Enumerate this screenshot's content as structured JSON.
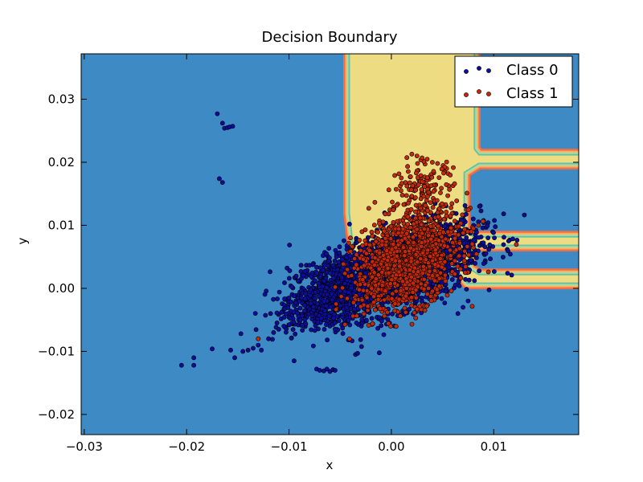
{
  "chart_data": {
    "type": "scatter",
    "title": "Decision Boundary",
    "xlabel": "x",
    "ylabel": "y",
    "xlim": [
      -0.0303,
      0.0183
    ],
    "ylim": [
      -0.0232,
      0.0372
    ],
    "x_ticks": [
      -0.03,
      -0.02,
      -0.01,
      0.0,
      0.01
    ],
    "x_tick_labels": [
      "−0.03",
      "−0.02",
      "−0.01",
      "0.00",
      "0.01"
    ],
    "y_ticks": [
      -0.02,
      -0.01,
      0.0,
      0.01,
      0.02,
      0.03
    ],
    "y_tick_labels": [
      "−0.02",
      "−0.01",
      "0.00",
      "0.01",
      "0.02",
      "0.03"
    ],
    "legend": {
      "placement": "top-right",
      "entries": [
        "Class 0",
        "Class 1"
      ]
    },
    "colors": {
      "background_region": "#3d8ac4",
      "class1_region": "#eedc82",
      "class0_point": "#0d0d9c",
      "class1_point": "#c42a0a",
      "boundary_bands": [
        "#f46d43",
        "#fdae61",
        "#abdda4",
        "#66c2a5"
      ]
    },
    "decision_regions": {
      "class1_region_polygon": [
        [
          -0.004,
          0.0372
        ],
        [
          0.008,
          0.0372
        ],
        [
          0.008,
          0.022
        ],
        [
          0.0085,
          0.021
        ],
        [
          0.0183,
          0.021
        ],
        [
          0.0183,
          0.02
        ],
        [
          0.0085,
          0.02
        ],
        [
          0.007,
          0.0185
        ],
        [
          0.007,
          0.009
        ],
        [
          0.008,
          0.008
        ],
        [
          0.0183,
          0.008
        ],
        [
          0.0183,
          0.007
        ],
        [
          0.0085,
          0.007
        ],
        [
          0.0075,
          0.006
        ],
        [
          0.0075,
          0.003
        ],
        [
          0.0085,
          0.002
        ],
        [
          0.0183,
          0.002
        ],
        [
          0.0183,
          0.001
        ],
        [
          0.0075,
          0.001
        ],
        [
          0.0055,
          0.005
        ],
        [
          -0.0035,
          0.005
        ],
        [
          -0.004,
          0.012
        ]
      ]
    },
    "series": [
      {
        "name": "Class 0",
        "color": "#0d0d9c",
        "clusters": [
          {
            "x": 0.001,
            "y": 0.003,
            "sx": 0.0038,
            "sy": 0.0036,
            "rho": 0.55,
            "n": 2000
          },
          {
            "x": -0.005,
            "y": 0.001,
            "sx": 0.0025,
            "sy": 0.0028,
            "rho": 0.5,
            "n": 600
          },
          {
            "x": -0.0075,
            "y": -0.004,
            "sx": 0.002,
            "sy": 0.0015,
            "rho": 0.3,
            "n": 150
          }
        ],
        "points": [
          [
            -0.017,
            0.0277
          ],
          [
            -0.0165,
            0.0262
          ],
          [
            -0.0163,
            0.0254
          ],
          [
            -0.016,
            0.0255
          ],
          [
            -0.0158,
            0.0256
          ],
          [
            -0.0155,
            0.0257
          ],
          [
            -0.0168,
            0.0174
          ],
          [
            -0.0165,
            0.0168
          ],
          [
            -0.0205,
            -0.0122
          ],
          [
            -0.0193,
            -0.011
          ],
          [
            -0.0193,
            -0.0122
          ],
          [
            -0.0175,
            -0.0096
          ],
          [
            -0.0157,
            -0.0098
          ],
          [
            -0.0153,
            -0.011
          ],
          [
            -0.0147,
            -0.0072
          ],
          [
            -0.0145,
            -0.01
          ],
          [
            -0.014,
            -0.0098
          ],
          [
            -0.0135,
            -0.0095
          ],
          [
            -0.013,
            -0.009
          ],
          [
            -0.0127,
            -0.0098
          ],
          [
            -0.012,
            -0.008
          ],
          [
            -0.0115,
            -0.007
          ],
          [
            -0.011,
            -0.0065
          ],
          [
            -0.0105,
            -0.006
          ],
          [
            -0.0118,
            -0.004
          ],
          [
            -0.0095,
            -0.0115
          ],
          [
            -0.0073,
            -0.0128
          ],
          [
            -0.007,
            -0.013
          ],
          [
            -0.0066,
            -0.0131
          ],
          [
            -0.0063,
            -0.0128
          ],
          [
            -0.006,
            -0.0132
          ],
          [
            -0.0057,
            -0.0129
          ],
          [
            -0.0055,
            -0.013
          ],
          [
            -0.0035,
            -0.0105
          ],
          [
            -0.0033,
            -0.0103
          ],
          [
            0.0065,
            -0.004
          ],
          [
            0.007,
            -0.003
          ],
          [
            0.0075,
            -0.002
          ]
        ]
      },
      {
        "name": "Class 1",
        "color": "#c42a0a",
        "clusters": [
          {
            "x": 0.0015,
            "y": 0.0045,
            "sx": 0.0025,
            "sy": 0.0038,
            "rho": 0.35,
            "n": 1400
          },
          {
            "x": 0.003,
            "y": 0.016,
            "sx": 0.0015,
            "sy": 0.002,
            "rho": 0.2,
            "n": 120
          }
        ],
        "points": [
          [
            0.002,
            0.0213
          ],
          [
            0.0025,
            0.021
          ],
          [
            0.003,
            0.0207
          ],
          [
            0.0035,
            0.0205
          ],
          [
            0.004,
            0.02
          ],
          [
            0.0085,
            0.01
          ],
          [
            0.008,
            0.0095
          ],
          [
            0.0078,
            0.009
          ],
          [
            -0.013,
            -0.008
          ],
          [
            -0.004,
            0.008
          ],
          [
            -0.003,
            0.006
          ]
        ]
      }
    ]
  }
}
